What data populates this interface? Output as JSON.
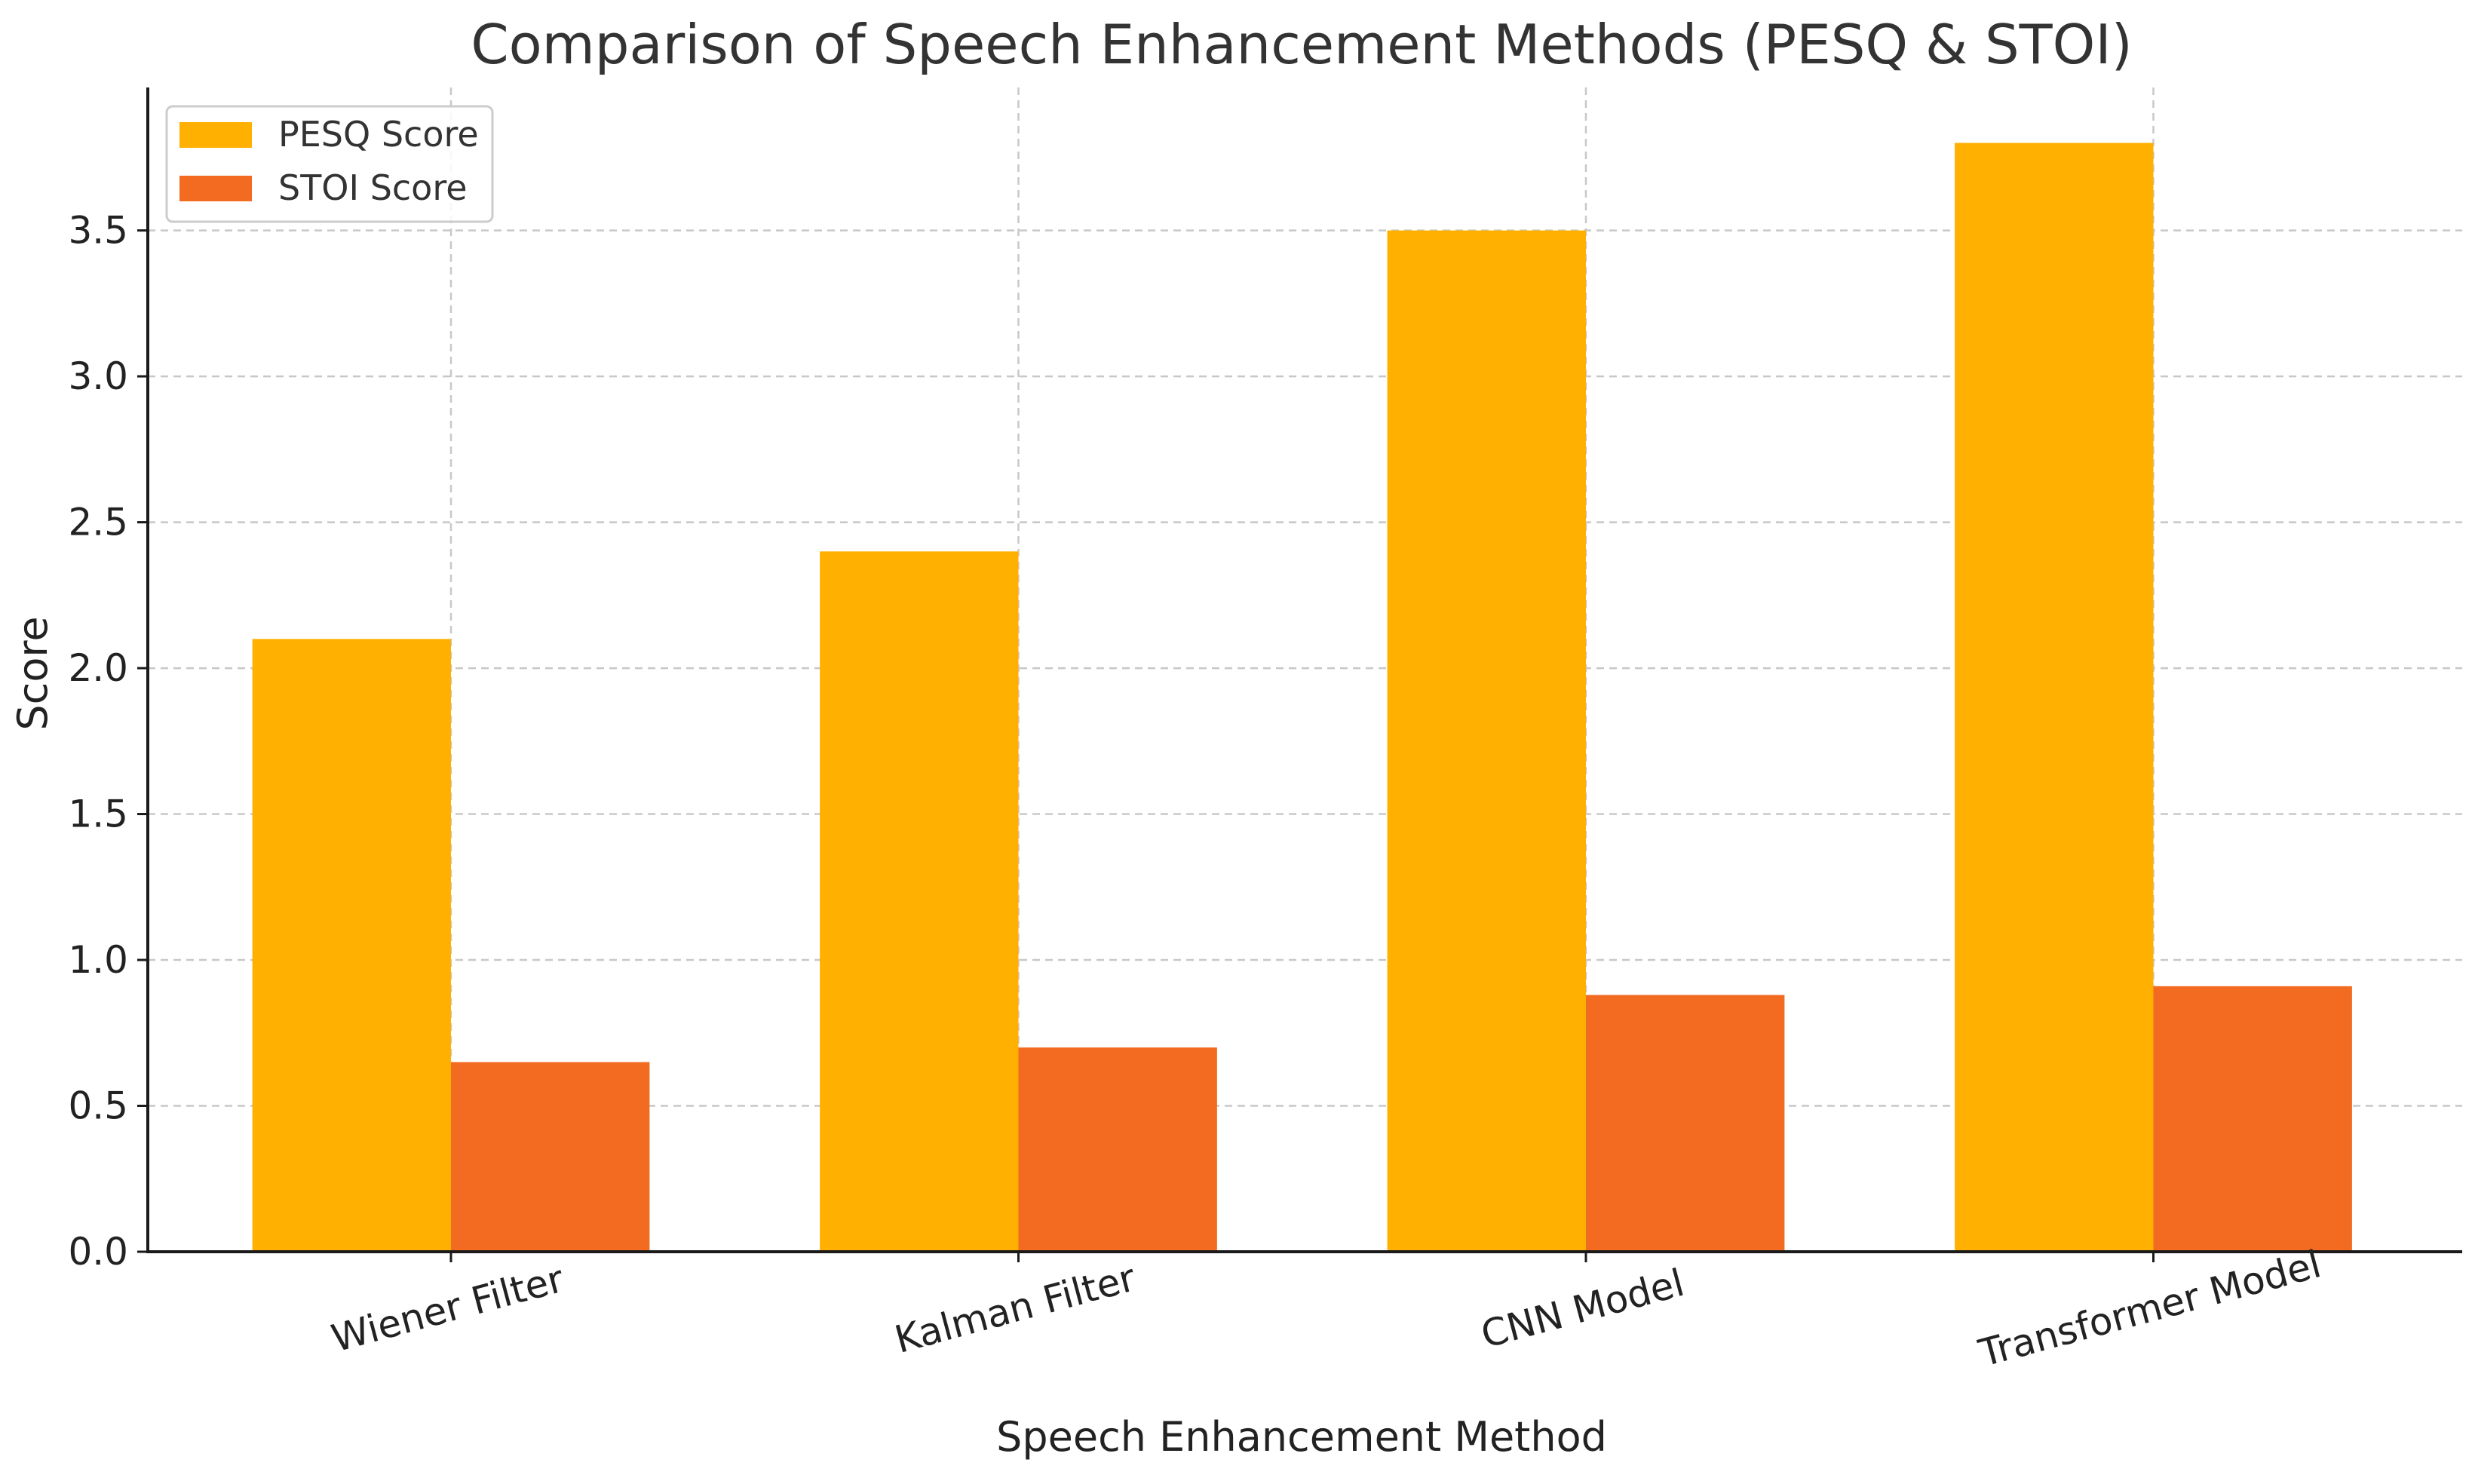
{
  "chart_data": {
    "type": "bar",
    "title": "Comparison of Speech Enhancement Methods (PESQ & STOI)",
    "xlabel": "Speech Enhancement Method",
    "ylabel": "Score",
    "categories": [
      "Wiener Filter",
      "Kalman Filter",
      "CNN Model",
      "Transformer Model"
    ],
    "series": [
      {
        "name": "PESQ Score",
        "color": "#ffb000",
        "values": [
          2.1,
          2.4,
          3.5,
          3.8
        ]
      },
      {
        "name": "STOI Score",
        "color": "#f26b21",
        "values": [
          0.65,
          0.7,
          0.88,
          0.91
        ]
      }
    ],
    "ylim": [
      0,
      3.99
    ],
    "yticks": [
      0.0,
      0.5,
      1.0,
      1.5,
      2.0,
      2.5,
      3.0,
      3.5
    ],
    "ytick_labels": [
      "0.0",
      "0.5",
      "1.0",
      "1.5",
      "2.0",
      "2.5",
      "3.0",
      "3.5"
    ],
    "grid": true,
    "legend_position": "top-left"
  }
}
